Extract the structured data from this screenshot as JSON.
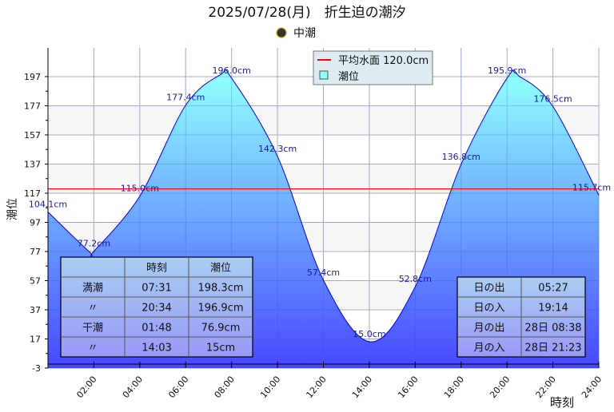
{
  "chart_data": {
    "type": "area",
    "title": "2025/07/28(月)　折生迫の潮汐",
    "subtitle": "中潮",
    "moon_icon": "half-moon-icon",
    "xlabel": "時刻",
    "ylabel": "潮位",
    "xlim_hours": [
      0,
      24
    ],
    "ylim": [
      -3,
      216.7
    ],
    "yticks": [
      -3,
      17,
      37,
      57,
      77,
      97,
      117,
      137,
      157,
      177,
      197
    ],
    "xticks": [
      "02:00",
      "04:00",
      "06:00",
      "08:00",
      "10:00",
      "12:00",
      "14:00",
      "16:00",
      "18:00",
      "20:00",
      "22:00",
      "24:00"
    ],
    "xtick_hours": [
      2,
      4,
      6,
      8,
      10,
      12,
      14,
      16,
      18,
      20,
      22,
      24
    ],
    "grid": true,
    "mean_level": {
      "label": "平均水面 120.0cm",
      "value": 120.0,
      "color": "#ff0000"
    },
    "series": [
      {
        "name": "潮位",
        "points": [
          [
            0,
            104.1
          ],
          [
            1.8,
            76.9
          ],
          [
            2,
            77.2
          ],
          [
            4,
            115.0
          ],
          [
            6,
            177.4
          ],
          [
            7.517,
            198.3
          ],
          [
            8,
            196.0
          ],
          [
            10,
            142.3
          ],
          [
            12,
            57.4
          ],
          [
            14.05,
            15.0
          ],
          [
            16,
            52.8
          ],
          [
            18,
            136.8
          ],
          [
            20,
            195.9
          ],
          [
            20.567,
            196.9
          ],
          [
            22,
            176.5
          ],
          [
            24,
            115.7
          ]
        ]
      }
    ],
    "data_labels": [
      {
        "h": 0,
        "v": 104.1,
        "text": "104.1cm"
      },
      {
        "h": 2,
        "v": 77.2,
        "text": "77.2cm"
      },
      {
        "h": 4,
        "v": 115.0,
        "text": "115.0cm"
      },
      {
        "h": 6,
        "v": 177.4,
        "text": "177.4cm"
      },
      {
        "h": 8,
        "v": 196.0,
        "text": "196.0cm"
      },
      {
        "h": 10,
        "v": 142.3,
        "text": "142.3cm"
      },
      {
        "h": 12,
        "v": 57.4,
        "text": "57.4cm"
      },
      {
        "h": 14,
        "v": 15.0,
        "text": "15.0cm"
      },
      {
        "h": 16,
        "v": 52.8,
        "text": "52.8cm"
      },
      {
        "h": 18,
        "v": 136.8,
        "text": "136.8cm"
      },
      {
        "h": 20,
        "v": 195.9,
        "text": "195.9cm"
      },
      {
        "h": 22,
        "v": 176.5,
        "text": "176.5cm"
      },
      {
        "h": 24,
        "v": 115.7,
        "text": "115.7cm"
      }
    ],
    "legend": {
      "placement": "top-right",
      "items": [
        "平均水面 120.0cm",
        "潮位"
      ]
    },
    "colors": {
      "fill_top": "#90ffff",
      "fill_bottom": "#4848ff",
      "line": "#0000ff",
      "label": "#1a1a99"
    }
  },
  "tide_table": {
    "headers": [
      "",
      "時刻",
      "潮位"
    ],
    "rows": [
      [
        "満潮",
        "07:31",
        "198.3cm"
      ],
      [
        "〃",
        "20:34",
        "196.9cm"
      ],
      [
        "干潮",
        "01:48",
        "76.9cm"
      ],
      [
        "〃",
        "14:03",
        "15cm"
      ]
    ]
  },
  "sun_moon_table": {
    "rows": [
      [
        "日の出",
        "05:27"
      ],
      [
        "日の入",
        "19:14"
      ],
      [
        "月の出",
        "28日 08:38"
      ],
      [
        "月の入",
        "28日 21:23"
      ]
    ]
  }
}
